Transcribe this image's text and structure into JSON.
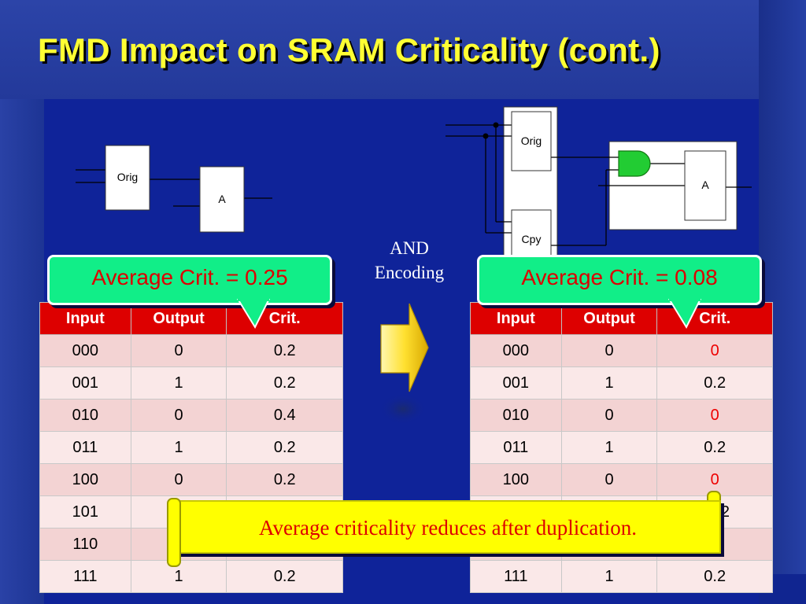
{
  "title": "FMD Impact on SRAM Criticality (cont.)",
  "left_circuit": {
    "orig_label": "Orig",
    "gate_label": "A"
  },
  "right_circuit": {
    "orig_label": "Orig",
    "copy_label": "Cpy",
    "gate_label": "A"
  },
  "encoding_label_line1": "AND",
  "encoding_label_line2": "Encoding",
  "left_callout": "Average Crit. = 0.25",
  "right_callout": "Average Crit. = 0.08",
  "columns": [
    "Input",
    "Output",
    "Crit."
  ],
  "left_table": [
    [
      "000",
      "0",
      "0.2"
    ],
    [
      "001",
      "1",
      "0.2"
    ],
    [
      "010",
      "0",
      "0.4"
    ],
    [
      "011",
      "1",
      "0.2"
    ],
    [
      "100",
      "0",
      "0.2"
    ],
    [
      "101",
      "",
      ""
    ],
    [
      "110",
      "",
      ""
    ],
    [
      "111",
      "1",
      "0.2"
    ]
  ],
  "right_table": [
    [
      "000",
      "0",
      "0"
    ],
    [
      "001",
      "1",
      "0.2"
    ],
    [
      "010",
      "0",
      "0"
    ],
    [
      "011",
      "1",
      "0.2"
    ],
    [
      "100",
      "0",
      "0"
    ],
    [
      "",
      "",
      "2"
    ],
    [
      "",
      "",
      ""
    ],
    [
      "111",
      "1",
      "0.2"
    ]
  ],
  "highlight_color": "#ee0000",
  "banner": "Average criticality reduces after duplication."
}
